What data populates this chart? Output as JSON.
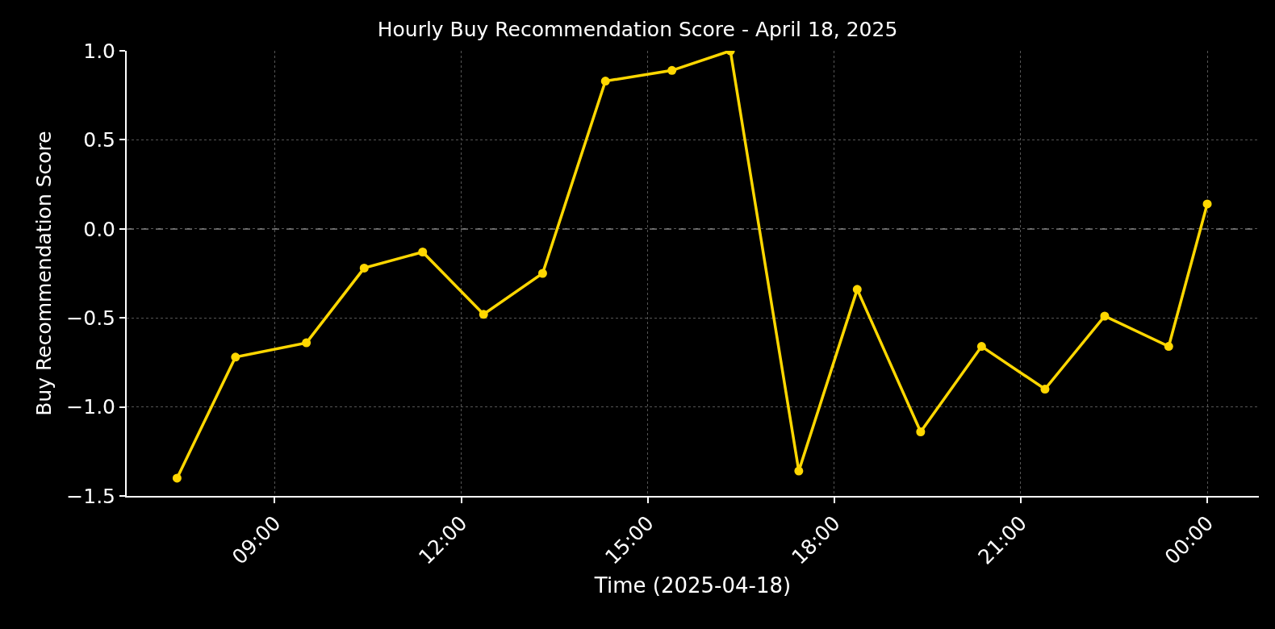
{
  "chart_data": {
    "type": "line",
    "title": "Hourly Buy Recommendation Score - April 18, 2025",
    "xlabel": "Time (2025-04-18)",
    "ylabel": "Buy Recommendation Score",
    "x": [
      7.43,
      8.37,
      9.51,
      10.44,
      11.38,
      12.36,
      13.31,
      14.32,
      15.39,
      16.33,
      17.43,
      18.37,
      19.39,
      20.37,
      21.39,
      22.35,
      23.38,
      24.0
    ],
    "series": [
      {
        "color": "#ffd700",
        "values": [
          -1.4,
          -0.72,
          -0.64,
          -0.22,
          -0.13,
          -0.48,
          -0.25,
          0.83,
          0.89,
          1.0,
          -1.36,
          -0.34,
          -1.14,
          -0.66,
          -0.9,
          -0.49,
          -0.66,
          0.14
        ]
      }
    ],
    "xlim": [
      6.62,
      24.83
    ],
    "xticks": [
      {
        "value": 9,
        "label": "09:00"
      },
      {
        "value": 12,
        "label": "12:00"
      },
      {
        "value": 15,
        "label": "15:00"
      },
      {
        "value": 18,
        "label": "18:00"
      },
      {
        "value": 21,
        "label": "21:00"
      },
      {
        "value": 24,
        "label": "00:00"
      }
    ],
    "ylim": [
      -1.5,
      1.0
    ],
    "yticks": [
      {
        "value": -1.5,
        "label": "−1.5"
      },
      {
        "value": -1.0,
        "label": "−1.0"
      },
      {
        "value": -0.5,
        "label": "−0.5"
      },
      {
        "value": 0,
        "label": "0.0"
      },
      {
        "value": 0.5,
        "label": "0.5"
      },
      {
        "value": 1.0,
        "label": "1.0"
      }
    ],
    "ref_lines": [
      {
        "axis": "y",
        "value": 0,
        "color": "#808080",
        "line_style": "dashed"
      }
    ],
    "grid": true,
    "marker": "circle",
    "line_style": "solid"
  }
}
